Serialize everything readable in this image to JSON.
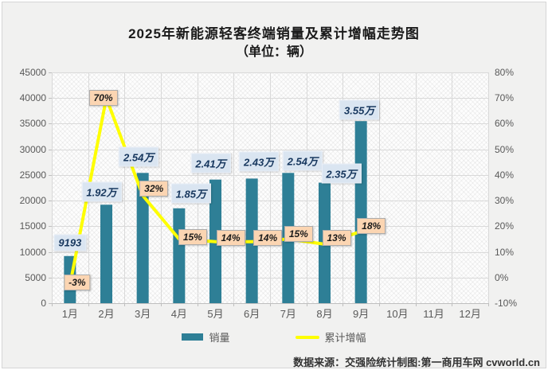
{
  "title": {
    "line1": "2025年新能源轻客终端销量及累计增幅走势图",
    "line2": "（单位：辆）"
  },
  "footer": {
    "source": "数据来源：交强险统计制图:第一商用车网 cvworld.cn"
  },
  "colors": {
    "bar": "#2E7F96",
    "line": "#FEFE00",
    "grid": "#D9D9D9",
    "axis": "#BFBFBF",
    "sales_label_bg": "#DAE5F1",
    "sales_label_text": "#17375E",
    "pct_label_bg": "#FBD5B2",
    "canvas_bg": "#F1F1F0"
  },
  "chart_data": {
    "type": "bar",
    "title": "2025年新能源轻客终端销量及累计增幅走势图（单位：辆）",
    "categories": [
      "1月",
      "2月",
      "3月",
      "4月",
      "5月",
      "6月",
      "7月",
      "8月",
      "9月",
      "10月",
      "11月",
      "12月"
    ],
    "series": [
      {
        "name": "销量",
        "type": "bar",
        "axis": "left",
        "values": [
          9193,
          19200,
          25400,
          18500,
          24100,
          24300,
          25400,
          23500,
          35500,
          null,
          null,
          null
        ],
        "labels": [
          "9193",
          "1.92万",
          "2.54万",
          "1.85万",
          "2.41万",
          "2.43万",
          "2.54万",
          "2.35万",
          "3.55万"
        ]
      },
      {
        "name": "累计增幅",
        "type": "line",
        "axis": "right",
        "values": [
          -3,
          70,
          32,
          15,
          14,
          14,
          15,
          13,
          18,
          null,
          null,
          null
        ],
        "labels": [
          "-3%",
          "70%",
          "32%",
          "15%",
          "14%",
          "14%",
          "15%",
          "13%",
          "18%"
        ]
      }
    ],
    "left_axis": {
      "min": 0,
      "max": 45000,
      "step": 5000,
      "ticks": [
        "0",
        "5000",
        "10000",
        "15000",
        "20000",
        "25000",
        "30000",
        "35000",
        "40000",
        "45000"
      ]
    },
    "right_axis": {
      "min": -10,
      "max": 80,
      "step": 10,
      "ticks": [
        "-10%",
        "0%",
        "10%",
        "20%",
        "30%",
        "40%",
        "50%",
        "60%",
        "70%",
        "80%"
      ]
    },
    "grid": true,
    "legend_position": "bottom"
  }
}
